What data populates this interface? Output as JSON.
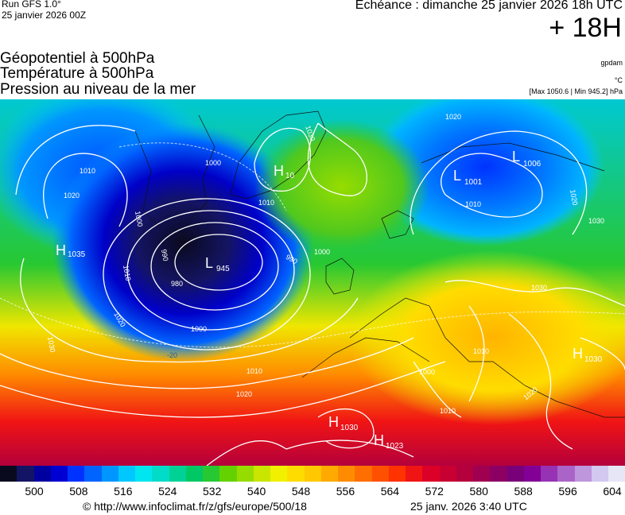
{
  "header": {
    "run": "Run GFS 1.0°",
    "run_date": "25 janvier 2026 00Z",
    "echeance": "Echéance : dimanche 25 janvier 2026 18h UTC",
    "lead_time": "+ 18H"
  },
  "fields": {
    "line1": "Géopotentiel à 500hPa",
    "line2": "Température à 500hPa",
    "line3": "Pression au niveau de la mer"
  },
  "units": {
    "geopotential": "gpdam",
    "temperature": "°C",
    "minmax": "[Max 1050.6 | Min 945.2] hPa"
  },
  "map": {
    "centers": [
      {
        "type": "H",
        "value": "1035"
      },
      {
        "type": "H",
        "value": "10"
      },
      {
        "type": "L",
        "value": "945"
      },
      {
        "type": "L",
        "value": "1001"
      },
      {
        "type": "L",
        "value": "1006"
      },
      {
        "type": "H",
        "value": "1030"
      },
      {
        "type": "H",
        "value": "1023"
      },
      {
        "type": "H",
        "value": "1030"
      }
    ],
    "isobar_labels": [
      "1010",
      "1020",
      "1000",
      "990",
      "980",
      "1000",
      "1010",
      "1020",
      "1030",
      "1000",
      "1030",
      "1010",
      "990",
      "1000",
      "1010",
      "1020",
      "1020",
      "1010",
      "1030",
      "1020",
      "1030",
      "1010",
      "1000",
      "1010",
      "1020"
    ],
    "temperature_labels": [
      "-20"
    ]
  },
  "color_scale": {
    "colors": [
      "#0a0a1e",
      "#141464",
      "#0000a0",
      "#0000d2",
      "#0032ff",
      "#0064ff",
      "#0096ff",
      "#00c8ff",
      "#00e6f0",
      "#00dcc8",
      "#00d296",
      "#00c864",
      "#28c832",
      "#64d200",
      "#96dc00",
      "#c8e600",
      "#f0f000",
      "#ffdc00",
      "#ffc800",
      "#ffaa00",
      "#ff8c00",
      "#ff6e00",
      "#ff5000",
      "#ff3200",
      "#f01414",
      "#dc0028",
      "#c80032",
      "#b4003c",
      "#a00050",
      "#8c0064",
      "#780078",
      "#820096",
      "#9632b4",
      "#aa64c8",
      "#be96dc",
      "#d2c8f0",
      "#e6e6f5"
    ],
    "ticks": [
      "500",
      "508",
      "516",
      "524",
      "532",
      "540",
      "548",
      "556",
      "564",
      "572",
      "580",
      "588",
      "596",
      "604"
    ]
  },
  "footer": {
    "copyright": "© http://www.infoclimat.fr/z/gfs/europe/500/18",
    "generated": "25 janv. 2026  3:40 UTC"
  }
}
